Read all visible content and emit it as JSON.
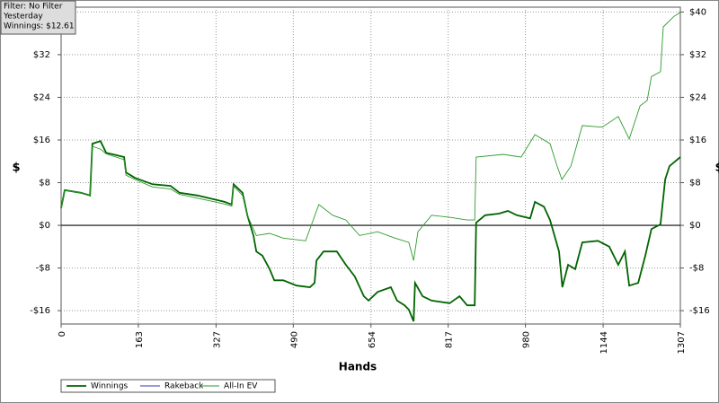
{
  "chart_data": {
    "type": "line",
    "info_lines": [
      "Filter: No Filter",
      "Yesterday",
      "Winnings: $12.61"
    ],
    "x_label": "Hands",
    "y_label": "$",
    "xlim": [
      0,
      1307
    ],
    "xticks": [
      0,
      163,
      327,
      490,
      654,
      817,
      980,
      1144,
      1307
    ],
    "ylim": [
      -18.5,
      40.9
    ],
    "yticks": [
      {
        "value": -16,
        "label": "-$16"
      },
      {
        "value": -8,
        "label": "-$8"
      },
      {
        "value": 0,
        "label": "$0"
      },
      {
        "value": 8,
        "label": "$8"
      },
      {
        "value": 16,
        "label": "$16"
      },
      {
        "value": 24,
        "label": "$24"
      },
      {
        "value": 32,
        "label": "$32"
      },
      {
        "value": 40,
        "label": "$40"
      }
    ],
    "grid": true,
    "series": [
      {
        "name": "Winnings",
        "color": "#006400",
        "x": [
          0,
          7.6,
          42,
          61,
          66,
          83,
          95,
          133,
          137,
          156,
          193,
          231,
          250,
          288,
          345,
          360,
          364,
          383,
          393,
          406,
          412,
          425,
          440,
          450,
          469,
          497,
          525,
          535,
          539,
          554,
          582,
          601,
          620,
          639,
          649,
          668,
          696,
          709,
          725,
          734,
          744,
          747,
          763,
          782,
          820,
          841,
          857,
          873,
          876,
          895,
          924,
          943,
          962,
          990,
          1000,
          1019,
          1032,
          1051,
          1058,
          1070,
          1085,
          1100,
          1133,
          1157,
          1176,
          1190,
          1199,
          1218,
          1233,
          1246,
          1265,
          1275,
          1284,
          1307
        ],
        "values": [
          3.2,
          6.6,
          6.1,
          5.6,
          15.3,
          15.8,
          13.6,
          12.8,
          9.9,
          8.9,
          7.7,
          7.4,
          6.1,
          5.6,
          4.4,
          3.9,
          7.7,
          6.1,
          1.9,
          -1.9,
          -4.9,
          -5.7,
          -8.2,
          -10.3,
          -10.3,
          -11.3,
          -11.6,
          -10.8,
          -6.6,
          -4.9,
          -4.9,
          -7.4,
          -9.6,
          -13.3,
          -14.1,
          -12.5,
          -11.6,
          -14.1,
          -15.0,
          -15.8,
          -18.0,
          -10.8,
          -13.3,
          -14.1,
          -14.6,
          -13.3,
          -15.0,
          -15.0,
          0.5,
          1.9,
          2.2,
          2.7,
          1.9,
          1.3,
          4.4,
          3.5,
          1.0,
          -4.9,
          -11.6,
          -7.4,
          -8.2,
          -3.2,
          -2.9,
          -4.0,
          -7.4,
          -4.9,
          -11.3,
          -10.8,
          -5.7,
          -0.7,
          0.2,
          8.6,
          11.1,
          12.8
        ]
      },
      {
        "name": "Rakeback",
        "color": "#3a3aa8",
        "x": [
          0,
          1307
        ],
        "values": [
          0,
          0
        ]
      },
      {
        "name": "All-In EV",
        "color": "#2e9a2e",
        "x": [
          0,
          7.6,
          42,
          61,
          66,
          83,
          95,
          133,
          137,
          156,
          193,
          231,
          250,
          288,
          345,
          360,
          364,
          383,
          393,
          412,
          440,
          469,
          516,
          544,
          573,
          601,
          630,
          668,
          705,
          734,
          744,
          753,
          782,
          820,
          857,
          873,
          876,
          933,
          971,
          1000,
          1032,
          1047,
          1057,
          1076,
          1100,
          1142,
          1176,
          1199,
          1222,
          1237,
          1246,
          1265,
          1271,
          1294,
          1307
        ],
        "values": [
          3.2,
          6.6,
          6.1,
          5.6,
          14.8,
          14.3,
          13.4,
          12.3,
          9.4,
          8.6,
          7.2,
          6.8,
          5.8,
          5.1,
          4.0,
          3.6,
          7.4,
          5.6,
          1.9,
          -1.9,
          -1.5,
          -2.4,
          -2.9,
          3.9,
          1.9,
          1.0,
          -1.9,
          -1.2,
          -2.4,
          -3.2,
          -6.6,
          -1.2,
          1.9,
          1.5,
          1.0,
          1.0,
          12.8,
          13.3,
          12.8,
          17.0,
          15.3,
          11.1,
          8.6,
          11.1,
          18.7,
          18.4,
          20.4,
          16.2,
          22.4,
          23.4,
          27.9,
          28.8,
          37.2,
          39.2,
          39.9
        ]
      }
    ]
  }
}
